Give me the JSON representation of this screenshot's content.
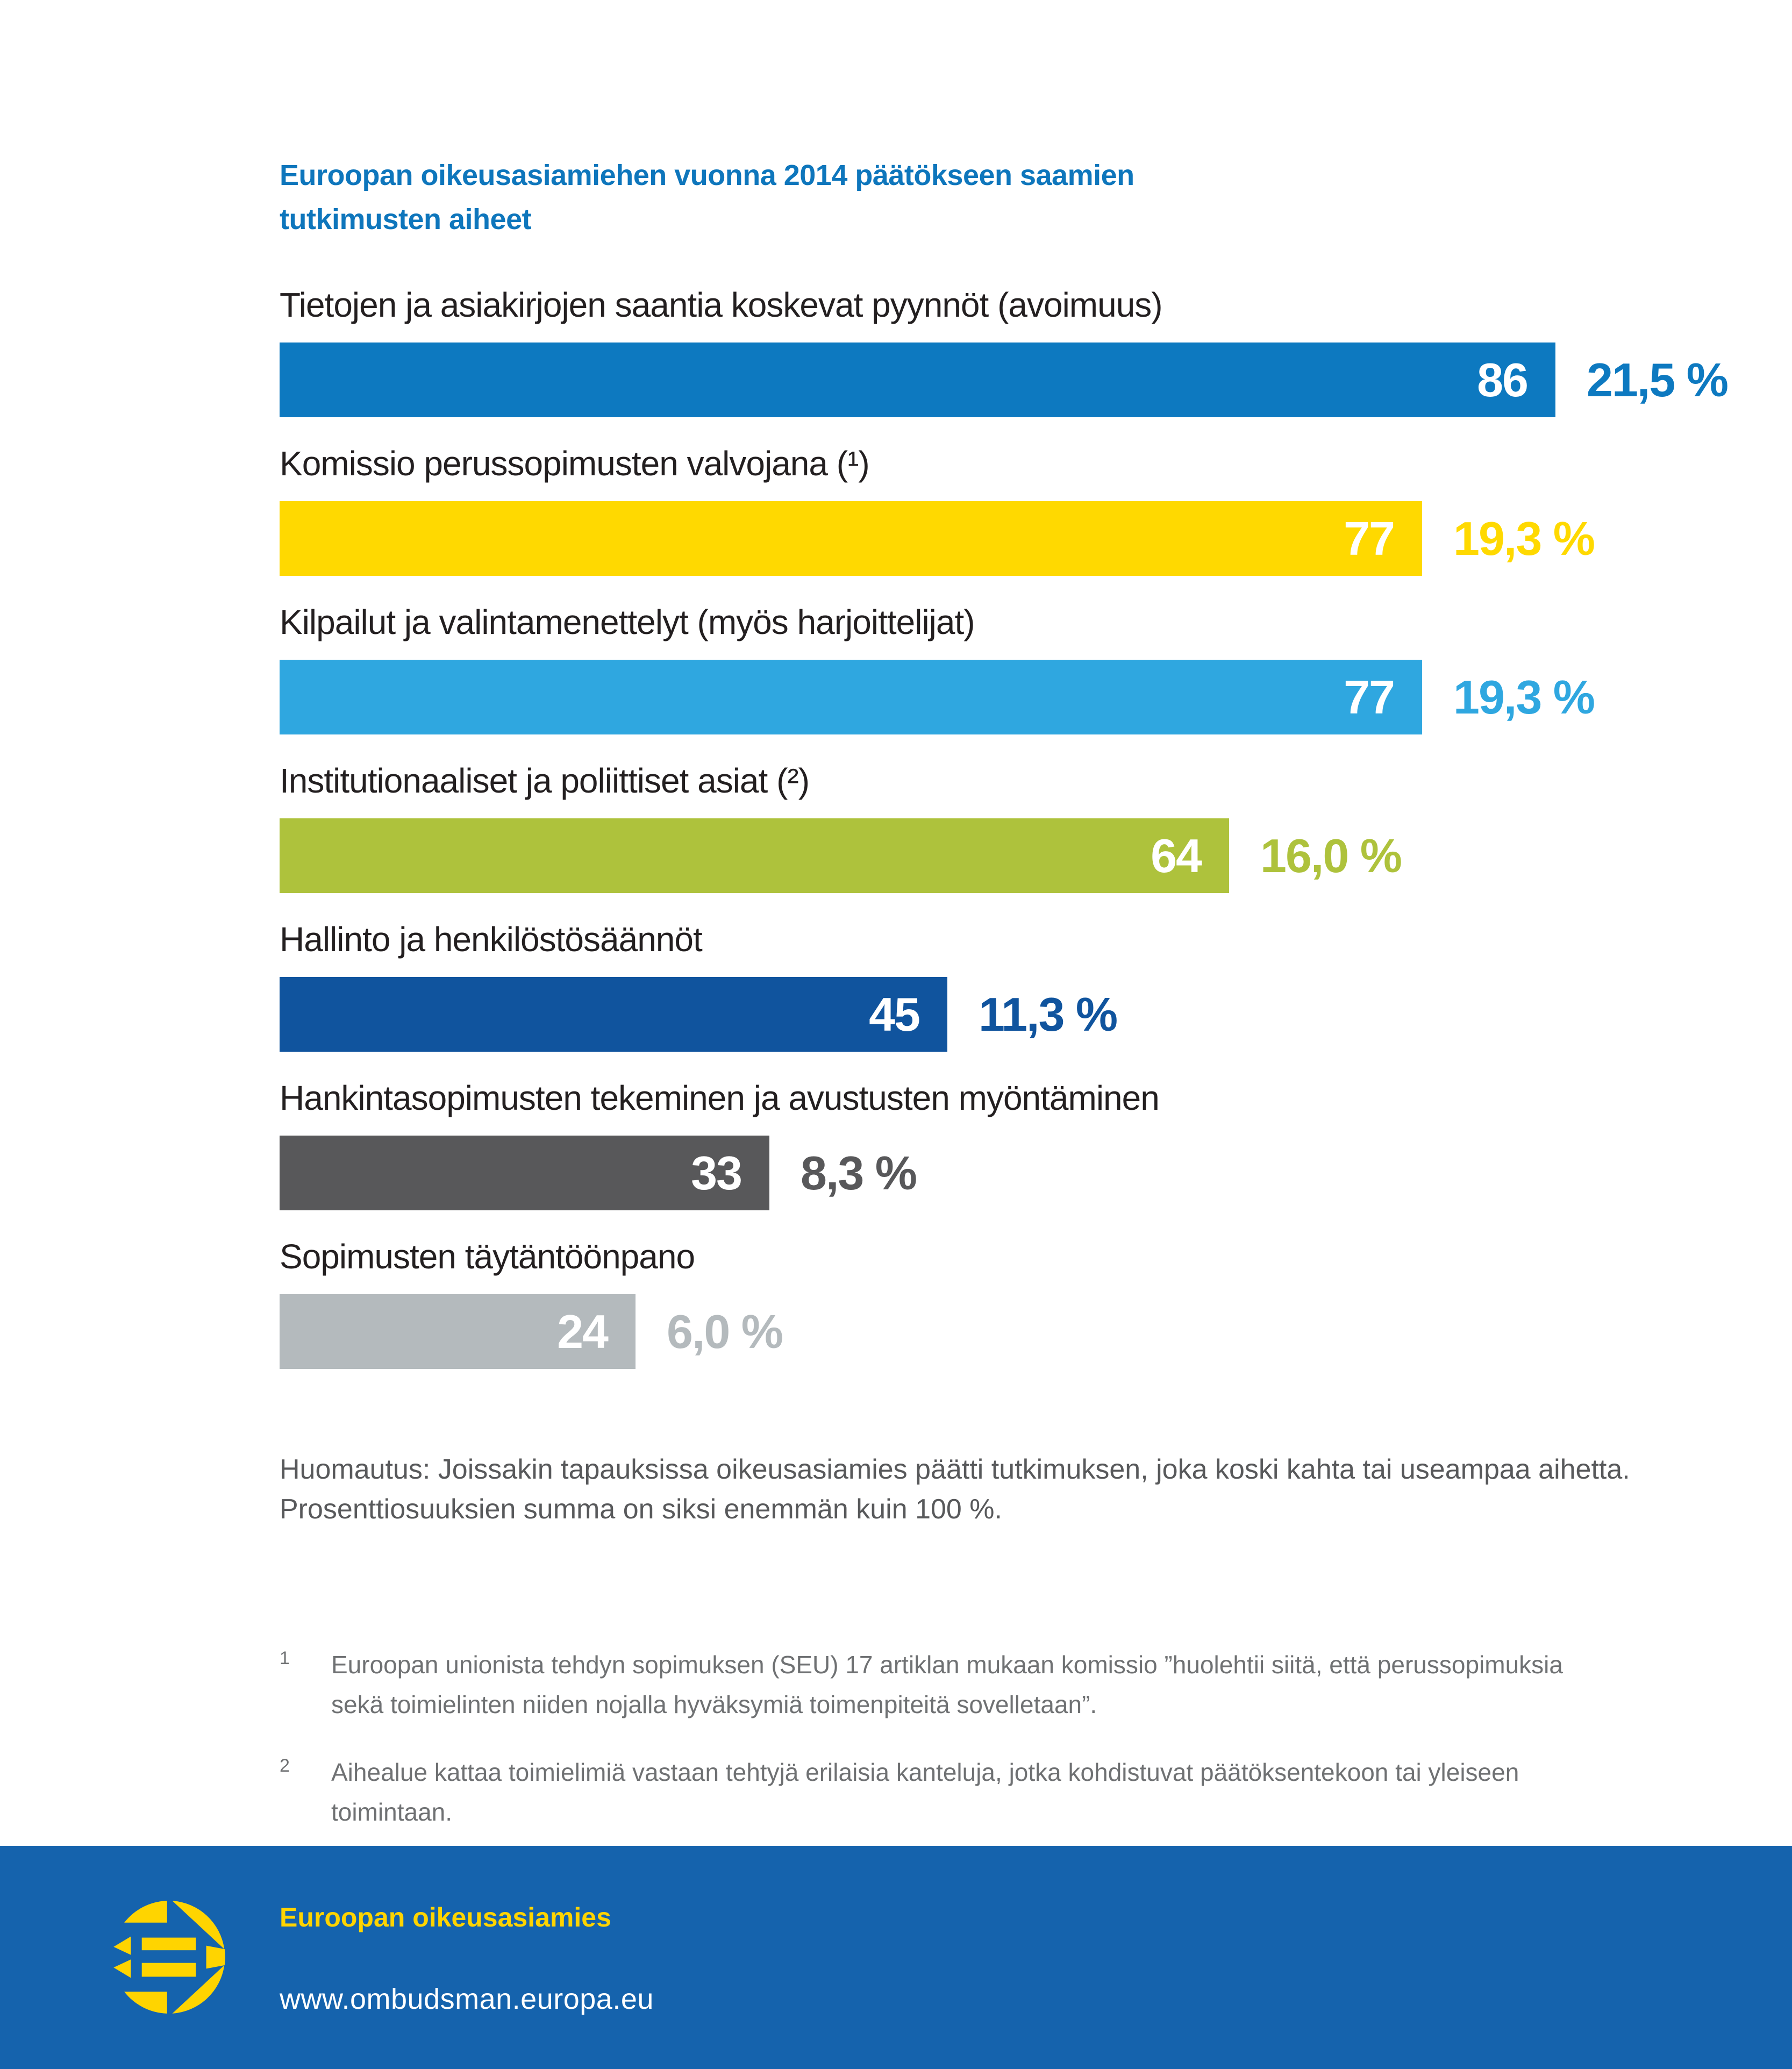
{
  "palette": {
    "title_blue": "#0e76bc",
    "label_color": "#231f20",
    "note_color": "#58595b",
    "footnote_color": "#6f7173",
    "footer_blue": "#1563ad",
    "footer_yellow": "#ffd400",
    "bar_value_color": "#ffffff"
  },
  "chart_data": {
    "type": "bar",
    "orientation": "horizontal",
    "title": "Euroopan oikeusasiamiehen vuonna 2014 päätökseen saamien tutkimusten aiheet",
    "xlim": [
      0,
      86
    ],
    "grid": false,
    "legend": "none",
    "categories": [
      "Tietojen ja asiakirjojen saantia koskevat pyynnöt (avoimuus)",
      "Komissio perussopimusten valvojana (¹)",
      "Kilpailut ja valintamenettelyt (myös harjoittelijat)",
      "Institutionaaliset ja poliittiset asiat (²)",
      "Hallinto ja henkilöstösäännöt",
      "Hankintasopimusten tekeminen ja avustusten myöntäminen",
      "Sopimusten täytäntöönpano"
    ],
    "values": [
      86,
      77,
      77,
      64,
      45,
      33,
      24
    ],
    "bars": [
      {
        "label": "Tietojen ja asiakirjojen saantia koskevat pyynnöt (avoimuus)",
        "value": 86,
        "pct": "21,5 %",
        "color": "#0d79c0"
      },
      {
        "label": "Komissio perussopimusten valvojana (¹)",
        "value": 77,
        "pct": "19,3 %",
        "color": "#ffd900"
      },
      {
        "label": "Kilpailut ja valintamenettelyt (myös harjoittelijat)",
        "value": 77,
        "pct": "19,3 %",
        "color": "#2fa7e0"
      },
      {
        "label": "Institutionaaliset ja poliittiset asiat (²)",
        "value": 64,
        "pct": "16,0 %",
        "color": "#aec23c"
      },
      {
        "label": "Hallinto ja henkilöstösäännöt",
        "value": 45,
        "pct": "11,3 %",
        "color": "#10549e"
      },
      {
        "label": "Hankintasopimusten tekeminen ja avustusten myöntäminen",
        "value": 33,
        "pct": "8,3 %",
        "color": "#58585a"
      },
      {
        "label": "Sopimusten täytäntöönpano",
        "value": 24,
        "pct": "6,0 %",
        "color": "#b4babd"
      }
    ]
  },
  "note": {
    "text": "Huomautus: Joissakin tapauksissa oikeusasiamies päätti tutkimuksen, joka koski kahta tai useampaa aihetta. Prosenttiosuuksien summa on siksi enemmän kuin 100 %."
  },
  "footnotes": [
    {
      "marker": "1",
      "text": "Euroopan unionista tehdyn sopimuksen (SEU) 17 artiklan mukaan komissio ”huolehtii siitä, että perussopimuksia sekä toimielinten niiden nojalla hyväksymiä toimenpiteitä sovelletaan”."
    },
    {
      "marker": "2",
      "text": "Aihealue kattaa toimielimiä vastaan tehtyjä erilaisia kanteluja, jotka kohdistuvat päätöksentekoon tai yleiseen toimintaan."
    }
  ],
  "footer": {
    "org": "Euroopan oikeusasiamies",
    "url": "www.ombudsman.europa.eu",
    "logo": "european-ombudsman-logo"
  }
}
